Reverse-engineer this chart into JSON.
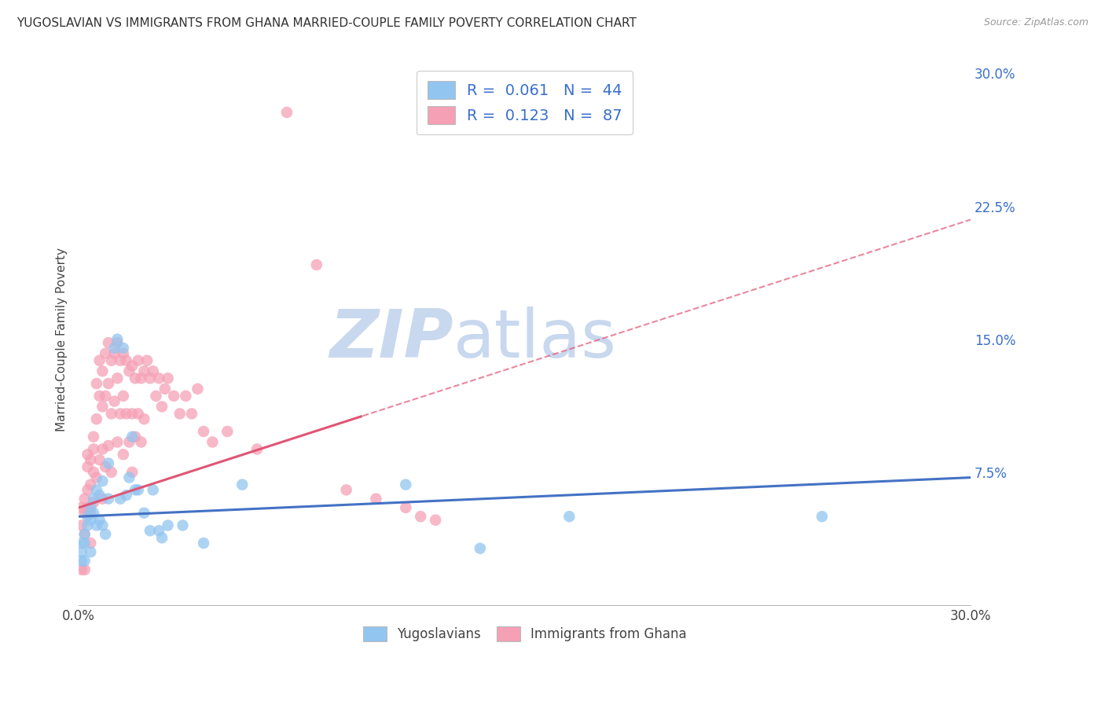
{
  "title": "YUGOSLAVIAN VS IMMIGRANTS FROM GHANA MARRIED-COUPLE FAMILY POVERTY CORRELATION CHART",
  "source": "Source: ZipAtlas.com",
  "ylabel": "Married-Couple Family Poverty",
  "xlim": [
    0.0,
    0.3
  ],
  "ylim": [
    0.0,
    0.3
  ],
  "ytick_positions": [
    0.075,
    0.15,
    0.225,
    0.3
  ],
  "ytick_labels": [
    "7.5%",
    "15.0%",
    "22.5%",
    "30.0%"
  ],
  "background_color": "#ffffff",
  "grid_color": "#d8d8d8",
  "series1_name": "Yugoslavians",
  "series1_color": "#92c5f0",
  "series1_R": 0.061,
  "series1_N": 44,
  "series1_line_color": "#4472c4",
  "series1_x": [
    0.001,
    0.001,
    0.001,
    0.002,
    0.002,
    0.002,
    0.003,
    0.003,
    0.004,
    0.004,
    0.004,
    0.005,
    0.005,
    0.006,
    0.006,
    0.007,
    0.007,
    0.008,
    0.008,
    0.009,
    0.01,
    0.01,
    0.012,
    0.013,
    0.014,
    0.015,
    0.016,
    0.017,
    0.018,
    0.019,
    0.02,
    0.022,
    0.024,
    0.025,
    0.027,
    0.028,
    0.03,
    0.035,
    0.042,
    0.055,
    0.11,
    0.135,
    0.165,
    0.25
  ],
  "series1_y": [
    0.035,
    0.03,
    0.025,
    0.04,
    0.035,
    0.025,
    0.05,
    0.045,
    0.055,
    0.048,
    0.03,
    0.06,
    0.052,
    0.065,
    0.045,
    0.062,
    0.048,
    0.07,
    0.045,
    0.04,
    0.08,
    0.06,
    0.145,
    0.15,
    0.06,
    0.145,
    0.062,
    0.072,
    0.095,
    0.065,
    0.065,
    0.052,
    0.042,
    0.065,
    0.042,
    0.038,
    0.045,
    0.045,
    0.035,
    0.068,
    0.068,
    0.032,
    0.05,
    0.05
  ],
  "series2_name": "Immigrants from Ghana",
  "series2_color": "#f5a0b5",
  "series2_R": 0.123,
  "series2_N": 87,
  "series2_line_color": "#e05575",
  "series2_x": [
    0.001,
    0.001,
    0.001,
    0.002,
    0.002,
    0.002,
    0.002,
    0.003,
    0.003,
    0.003,
    0.003,
    0.004,
    0.004,
    0.004,
    0.004,
    0.005,
    0.005,
    0.005,
    0.005,
    0.006,
    0.006,
    0.006,
    0.007,
    0.007,
    0.007,
    0.008,
    0.008,
    0.008,
    0.008,
    0.009,
    0.009,
    0.009,
    0.01,
    0.01,
    0.01,
    0.011,
    0.011,
    0.011,
    0.012,
    0.012,
    0.013,
    0.013,
    0.013,
    0.014,
    0.014,
    0.015,
    0.015,
    0.015,
    0.016,
    0.016,
    0.017,
    0.017,
    0.018,
    0.018,
    0.018,
    0.019,
    0.019,
    0.02,
    0.02,
    0.021,
    0.021,
    0.022,
    0.022,
    0.023,
    0.024,
    0.025,
    0.026,
    0.027,
    0.028,
    0.029,
    0.03,
    0.032,
    0.034,
    0.036,
    0.038,
    0.04,
    0.042,
    0.045,
    0.05,
    0.06,
    0.07,
    0.08,
    0.09,
    0.1,
    0.11,
    0.115,
    0.12
  ],
  "series2_y": [
    0.055,
    0.045,
    0.02,
    0.06,
    0.052,
    0.04,
    0.02,
    0.085,
    0.078,
    0.065,
    0.055,
    0.082,
    0.068,
    0.052,
    0.035,
    0.095,
    0.088,
    0.075,
    0.058,
    0.125,
    0.105,
    0.072,
    0.138,
    0.118,
    0.082,
    0.132,
    0.112,
    0.088,
    0.06,
    0.142,
    0.118,
    0.078,
    0.148,
    0.125,
    0.09,
    0.138,
    0.108,
    0.075,
    0.142,
    0.115,
    0.148,
    0.128,
    0.092,
    0.138,
    0.108,
    0.142,
    0.118,
    0.085,
    0.138,
    0.108,
    0.132,
    0.092,
    0.135,
    0.108,
    0.075,
    0.128,
    0.095,
    0.138,
    0.108,
    0.128,
    0.092,
    0.132,
    0.105,
    0.138,
    0.128,
    0.132,
    0.118,
    0.128,
    0.112,
    0.122,
    0.128,
    0.118,
    0.108,
    0.118,
    0.108,
    0.122,
    0.098,
    0.092,
    0.098,
    0.088,
    0.278,
    0.192,
    0.065,
    0.06,
    0.055,
    0.05,
    0.048
  ],
  "legend_text_color": "#3a6fcc",
  "legend_border_color": "#cccccc",
  "watermark_zip_color": "#c8d8ee",
  "watermark_atlas_color": "#c8d8ee"
}
